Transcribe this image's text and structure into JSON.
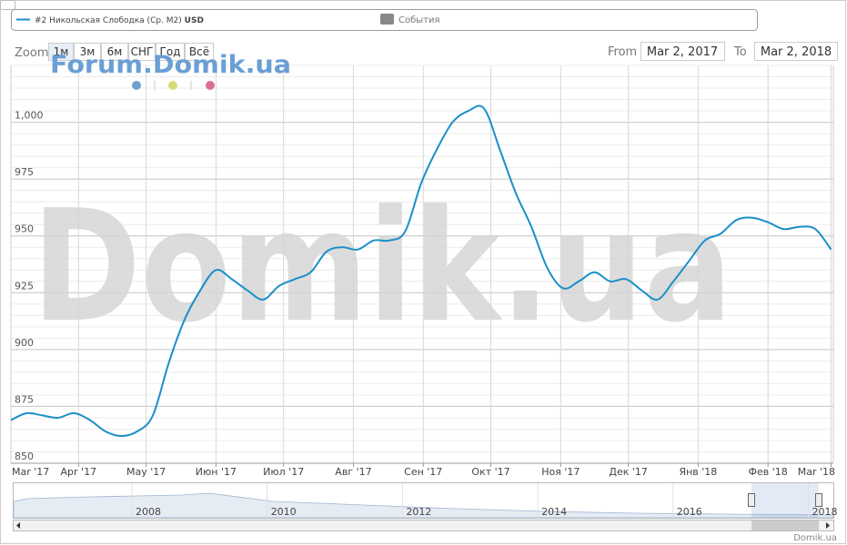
{
  "legend": {
    "events": "События",
    "events_color": "#888888"
  },
  "zoom": {
    "label": "Zoom",
    "buttons": [
      "1м",
      "3м",
      "6м",
      "СНГ",
      "Год",
      "Всё"
    ]
  },
  "range": {
    "from_label": "From",
    "from": "Mar 2, 2017",
    "to_label": "To",
    "to": "Mar 2, 2018"
  },
  "watermarks": {
    "small": "Forum.Domik.ua",
    "large": "Domik.ua"
  },
  "chart_data": {
    "type": "line",
    "unit": "USD",
    "x": [
      "2017-03-02",
      "2017-03-09",
      "2017-03-16",
      "2017-03-23",
      "2017-03-30",
      "2017-04-06",
      "2017-04-13",
      "2017-04-20",
      "2017-04-27",
      "2017-05-04",
      "2017-05-11",
      "2017-05-18",
      "2017-05-25",
      "2017-06-01",
      "2017-06-08",
      "2017-06-15",
      "2017-06-22",
      "2017-06-29",
      "2017-07-06",
      "2017-07-13",
      "2017-07-20",
      "2017-07-27",
      "2017-08-03",
      "2017-08-10",
      "2017-08-17",
      "2017-08-24",
      "2017-08-31",
      "2017-09-07",
      "2017-09-14",
      "2017-09-21",
      "2017-09-28",
      "2017-10-05",
      "2017-10-12",
      "2017-10-19",
      "2017-10-26",
      "2017-11-02",
      "2017-11-09",
      "2017-11-16",
      "2017-11-23",
      "2017-11-30",
      "2017-12-07",
      "2017-12-14",
      "2017-12-21",
      "2017-12-28",
      "2018-01-04",
      "2018-01-11",
      "2018-01-18",
      "2018-01-25",
      "2018-02-01",
      "2018-02-08",
      "2018-02-15",
      "2018-02-22",
      "2018-03-01"
    ],
    "series": [
      {
        "name": "#2 Никольская Слободка (Ср. М2)",
        "color": "#1a8fc8",
        "values": [
          869,
          872,
          871,
          870,
          872,
          869,
          864,
          862,
          864,
          871,
          894,
          913,
          926,
          935,
          931,
          926,
          922,
          928,
          931,
          934,
          943,
          945,
          944,
          948,
          948,
          952,
          973,
          988,
          1000,
          1005,
          1006,
          988,
          969,
          954,
          936,
          927,
          930,
          934,
          930,
          931,
          926,
          922,
          930,
          939,
          948,
          951,
          957,
          958,
          956,
          953,
          954,
          953,
          944
        ]
      }
    ],
    "xlim": [
      "2017-03-02",
      "2018-03-02"
    ],
    "xticks": [
      {
        "value": "2017-03",
        "label": "Mar '17"
      },
      {
        "value": "2017-04",
        "label": "Apr '17"
      },
      {
        "value": "2017-05",
        "label": "May '17"
      },
      {
        "value": "2017-06",
        "label": "Июн '17"
      },
      {
        "value": "2017-07",
        "label": "Июл '17"
      },
      {
        "value": "2017-08",
        "label": "Авг '17"
      },
      {
        "value": "2017-09",
        "label": "Сен '17"
      },
      {
        "value": "2017-10",
        "label": "Окт '17"
      },
      {
        "value": "2017-11",
        "label": "Ноя '17"
      },
      {
        "value": "2017-12",
        "label": "Дек '17"
      },
      {
        "value": "2018-01",
        "label": "Янв '18"
      },
      {
        "value": "2018-02",
        "label": "Фев '18"
      },
      {
        "value": "2018-03",
        "label": "Mar '18"
      }
    ],
    "ylim": [
      850,
      1025
    ],
    "yticks": [
      850,
      875,
      900,
      925,
      950,
      975,
      {
        "value": 1000,
        "label": "1,000"
      }
    ],
    "minor_grid_step": 5,
    "grid": true
  },
  "navigator": {
    "years": [
      "2008",
      "2010",
      "2012",
      "2014",
      "2016",
      "2018"
    ]
  },
  "credit": "Domik.ua"
}
